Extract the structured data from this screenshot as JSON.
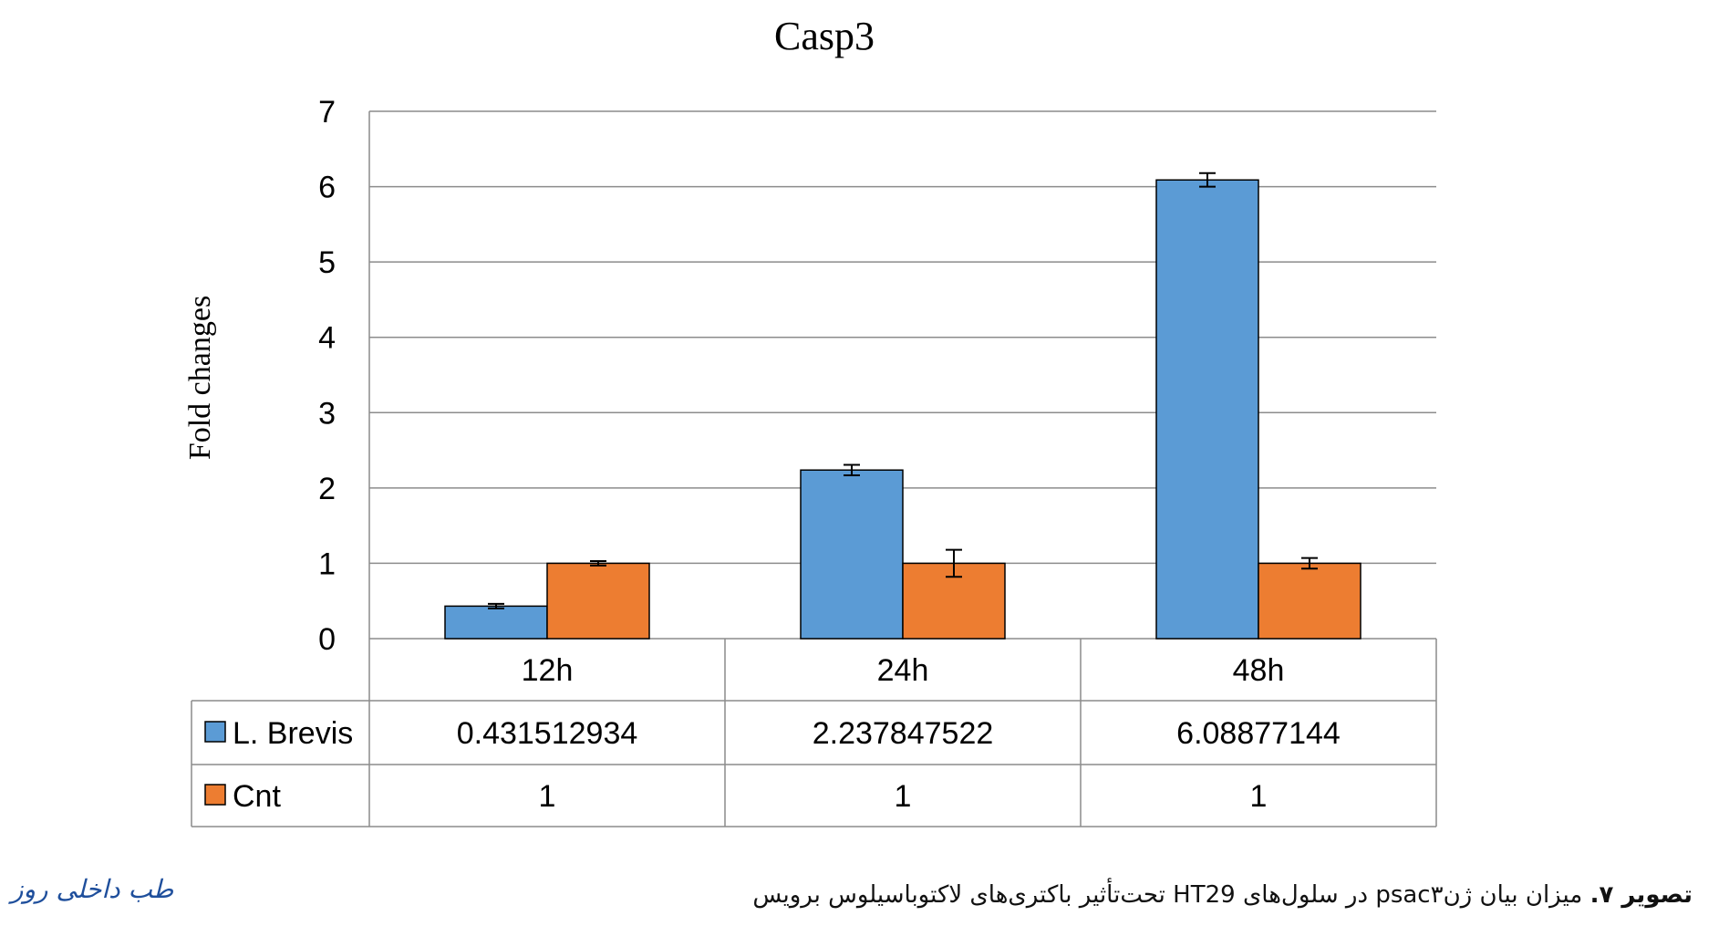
{
  "chart_data": {
    "type": "bar",
    "title": "Casp3",
    "ylabel": "Fold changes",
    "xlabel": "",
    "categories": [
      "12h",
      "24h",
      "48h"
    ],
    "ylim": [
      0,
      7
    ],
    "yticks": [
      0,
      1,
      2,
      3,
      4,
      5,
      6,
      7
    ],
    "grid": true,
    "series": [
      {
        "name": "L. Brevis",
        "color": "#5B9BD5",
        "values": [
          0.431512934,
          2.237847522,
          6.08877144
        ],
        "errors": [
          0.03,
          0.07,
          0.09
        ]
      },
      {
        "name": "Cnt",
        "color": "#ED7D31",
        "values": [
          1,
          1,
          1
        ],
        "errors": [
          0.03,
          0.18,
          0.07
        ]
      }
    ],
    "data_table": {
      "rows": [
        {
          "label": "L. Brevis",
          "cells": [
            "0.431512934",
            "2.237847522",
            "6.08877144"
          ]
        },
        {
          "label": "Cnt",
          "cells": [
            "1",
            "1",
            "1"
          ]
        }
      ]
    }
  },
  "caption": {
    "label": "تصویر ۷.",
    "text": " میزان بیان ژنpsac۳ در سلول‌های HT29 تحت‌تأثیر باکتری‌های لاکتوباسیلوس برویس"
  },
  "logo_text": "طب داخلی روز"
}
